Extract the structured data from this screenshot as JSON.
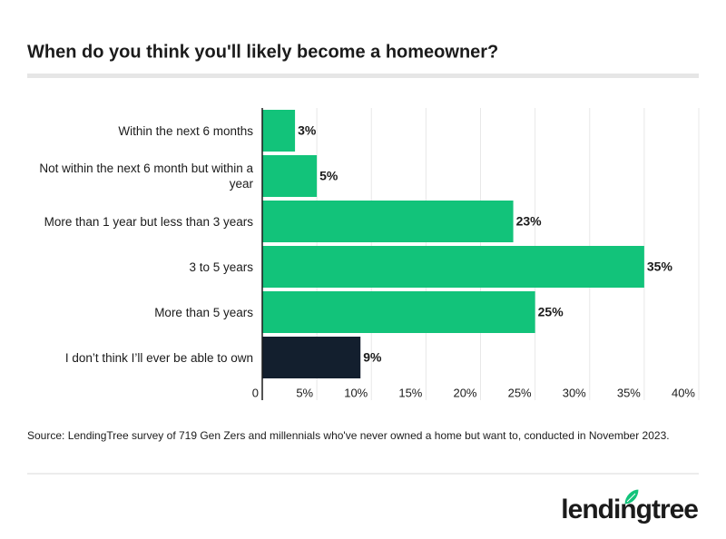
{
  "chart_data": {
    "type": "bar",
    "orientation": "horizontal",
    "title": "When do you think you'll likely become a homeowner?",
    "categories": [
      "Within the next 6 months",
      "Not within the next 6 month but within a year",
      "More than 1 year but less than 3 years",
      "3 to 5 years",
      "More than 5 years",
      "I don’t think I’ll ever be able to own"
    ],
    "values": [
      3,
      5,
      23,
      35,
      25,
      9
    ],
    "value_labels": [
      "3%",
      "5%",
      "23%",
      "35%",
      "25%",
      "9%"
    ],
    "colors": [
      "#12c37a",
      "#12c37a",
      "#12c37a",
      "#12c37a",
      "#12c37a",
      "#131f2e"
    ],
    "xlim": [
      0,
      40
    ],
    "xticks": [
      0,
      {
        "value": 5,
        "label": "5%"
      },
      {
        "value": 10,
        "label": "10%"
      },
      {
        "value": 15,
        "label": "15%"
      },
      {
        "value": 20,
        "label": "20%"
      },
      {
        "value": 25,
        "label": "25%"
      },
      {
        "value": 30,
        "label": "30%"
      },
      {
        "value": 35,
        "label": "35%"
      },
      {
        "value": 40,
        "label": "40%"
      }
    ],
    "grid": true,
    "source": "Source: LendingTree survey of 719 Gen Zers and millennials who've never owned a home but want to, conducted in November 2023."
  },
  "logo": "lendingtree"
}
